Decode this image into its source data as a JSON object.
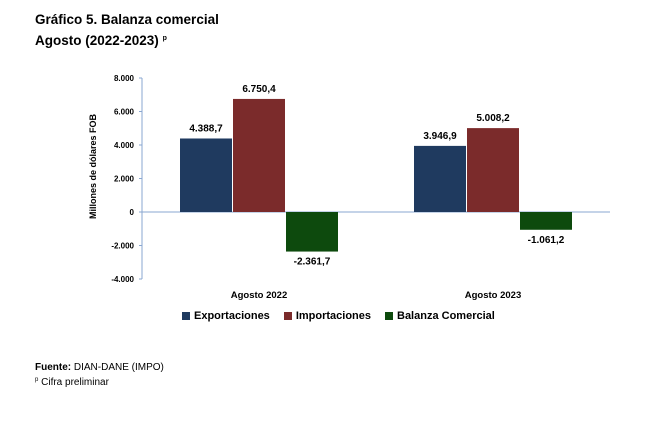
{
  "title": {
    "line1": "Gráfico 5. Balanza comercial",
    "line2": "Agosto (2022-2023)",
    "line2_mark": "p"
  },
  "chart_data": {
    "type": "bar",
    "categories": [
      "Agosto 2022",
      "Agosto 2023"
    ],
    "series": [
      {
        "name": "Exportaciones",
        "color": "#1f3a5f",
        "values": [
          4388.7,
          3946.9
        ],
        "labels": [
          "4.388,7",
          "3.946,9"
        ]
      },
      {
        "name": "Importaciones",
        "color": "#7b2b2b",
        "values": [
          6750.4,
          5008.2
        ],
        "labels": [
          "6.750,4",
          "5.008,2"
        ]
      },
      {
        "name": "Balanza Comercial",
        "color": "#0d4a0d",
        "values": [
          -2361.7,
          -1061.2
        ],
        "labels": [
          "-2.361,7",
          "-1.061,2"
        ]
      }
    ],
    "ylabel": "Millones de dólares FOB",
    "ylim": [
      -4000,
      8000
    ],
    "yticks": [
      8000,
      6000,
      4000,
      2000,
      0,
      -2000,
      -4000
    ],
    "ytick_labels": [
      "8.000",
      "6.000",
      "4.000",
      "2.000",
      "0",
      "-2.000",
      "-4.000"
    ],
    "legend_position": "bottom",
    "grid": false
  },
  "footer": {
    "source_label": "Fuente:",
    "source_text": "DIAN-DANE (IMPO)",
    "note_mark": "p",
    "note_text": "Cifra preliminar"
  }
}
